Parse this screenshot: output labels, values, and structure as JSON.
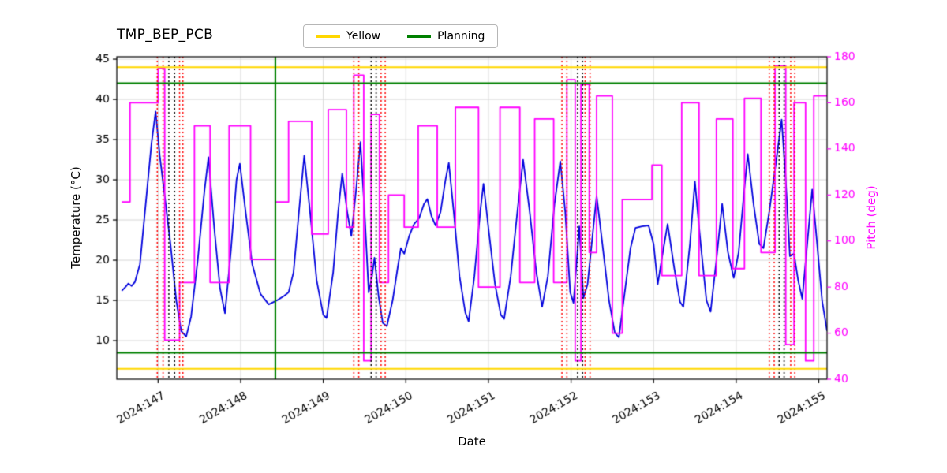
{
  "chart_data": {
    "type": "line",
    "title": "TMP_BEP_PCB",
    "xlabel": "Date",
    "ylabel_left": "Temperature (°C)",
    "ylabel_right": "Pitch (deg)",
    "grid": true,
    "xlim": [
      146.5,
      155.1
    ],
    "ylim_left": [
      5.2,
      45.3
    ],
    "ylim_right": [
      40,
      180
    ],
    "x_ticks": [
      {
        "value": 147,
        "label": "2024:147"
      },
      {
        "value": 148,
        "label": "2024:148"
      },
      {
        "value": 149,
        "label": "2024:149"
      },
      {
        "value": 150,
        "label": "2024:150"
      },
      {
        "value": 151,
        "label": "2024:151"
      },
      {
        "value": 152,
        "label": "2024:152"
      },
      {
        "value": 153,
        "label": "2024:153"
      },
      {
        "value": 154,
        "label": "2024:154"
      },
      {
        "value": 155,
        "label": "2024:155"
      }
    ],
    "y_ticks_left": [
      10,
      15,
      20,
      25,
      30,
      35,
      40,
      45
    ],
    "y_ticks_right": [
      40,
      60,
      80,
      100,
      120,
      140,
      160,
      180
    ],
    "legend": {
      "position": "top-center",
      "entries": [
        {
          "label": "Yellow",
          "color": "#ffd700"
        },
        {
          "label": "Planning",
          "color": "#008000"
        }
      ]
    },
    "limit_lines": {
      "yellow": {
        "color": "#ffd700",
        "values": [
          44.0,
          6.5
        ]
      },
      "green": {
        "color": "#008000",
        "values": [
          42.0,
          8.5
        ]
      }
    },
    "event_lines": {
      "green_solid": {
        "color": "#008000",
        "x": [
          148.42
        ]
      },
      "red_dotted": {
        "color": "#ff0000",
        "x": [
          146.99,
          147.06,
          147.26,
          147.3,
          149.37,
          149.43,
          149.7,
          149.75,
          151.89,
          151.95,
          152.17,
          152.23,
          154.4,
          154.46,
          154.66,
          154.71
        ]
      },
      "black_dotted": {
        "color": "#000000",
        "x": [
          147.13,
          147.2,
          149.58,
          149.64,
          152.08,
          152.14,
          154.52,
          154.58
        ]
      }
    },
    "series": [
      {
        "name": "temperature",
        "axis": "left",
        "style": "line",
        "color": "#0000dd",
        "points": [
          [
            146.56,
            16.2
          ],
          [
            146.6,
            16.6
          ],
          [
            146.64,
            17.1
          ],
          [
            146.68,
            16.8
          ],
          [
            146.72,
            17.3
          ],
          [
            146.78,
            19.5
          ],
          [
            146.85,
            27.0
          ],
          [
            146.92,
            34.5
          ],
          [
            146.97,
            38.5
          ],
          [
            147.02,
            33.0
          ],
          [
            147.08,
            28.0
          ],
          [
            147.15,
            22.0
          ],
          [
            147.22,
            15.0
          ],
          [
            147.28,
            11.2
          ],
          [
            147.34,
            10.5
          ],
          [
            147.4,
            13.0
          ],
          [
            147.48,
            20.0
          ],
          [
            147.56,
            28.5
          ],
          [
            147.61,
            32.8
          ],
          [
            147.68,
            24.0
          ],
          [
            147.75,
            16.5
          ],
          [
            147.81,
            13.4
          ],
          [
            147.88,
            21.0
          ],
          [
            147.95,
            30.0
          ],
          [
            147.99,
            32.0
          ],
          [
            148.06,
            26.0
          ],
          [
            148.14,
            19.5
          ],
          [
            148.24,
            15.8
          ],
          [
            148.34,
            14.5
          ],
          [
            148.44,
            15.0
          ],
          [
            148.53,
            15.6
          ],
          [
            148.58,
            16.0
          ],
          [
            148.64,
            18.5
          ],
          [
            148.71,
            26.5
          ],
          [
            148.77,
            33.0
          ],
          [
            148.84,
            26.0
          ],
          [
            148.92,
            17.5
          ],
          [
            149.0,
            13.2
          ],
          [
            149.04,
            12.8
          ],
          [
            149.12,
            18.5
          ],
          [
            149.18,
            26.0
          ],
          [
            149.23,
            30.8
          ],
          [
            149.29,
            26.0
          ],
          [
            149.34,
            23.0
          ],
          [
            149.4,
            29.0
          ],
          [
            149.45,
            34.7
          ],
          [
            149.5,
            26.0
          ],
          [
            149.55,
            16.0
          ],
          [
            149.59,
            18.0
          ],
          [
            149.62,
            20.3
          ],
          [
            149.67,
            15.5
          ],
          [
            149.72,
            12.2
          ],
          [
            149.77,
            11.8
          ],
          [
            149.84,
            15.0
          ],
          [
            149.9,
            19.0
          ],
          [
            149.94,
            21.5
          ],
          [
            149.98,
            20.8
          ],
          [
            150.04,
            23.0
          ],
          [
            150.1,
            24.5
          ],
          [
            150.16,
            25.2
          ],
          [
            150.22,
            27.0
          ],
          [
            150.26,
            27.6
          ],
          [
            150.31,
            25.5
          ],
          [
            150.36,
            24.3
          ],
          [
            150.42,
            26.0
          ],
          [
            150.48,
            30.0
          ],
          [
            150.52,
            32.1
          ],
          [
            150.58,
            26.0
          ],
          [
            150.65,
            18.0
          ],
          [
            150.72,
            13.5
          ],
          [
            150.76,
            12.4
          ],
          [
            150.83,
            18.0
          ],
          [
            150.9,
            26.0
          ],
          [
            150.94,
            29.5
          ],
          [
            151.0,
            24.0
          ],
          [
            151.08,
            17.0
          ],
          [
            151.15,
            13.2
          ],
          [
            151.19,
            12.7
          ],
          [
            151.27,
            18.0
          ],
          [
            151.35,
            26.0
          ],
          [
            151.42,
            32.5
          ],
          [
            151.5,
            26.0
          ],
          [
            151.58,
            18.5
          ],
          [
            151.65,
            14.2
          ],
          [
            151.72,
            18.0
          ],
          [
            151.8,
            27.0
          ],
          [
            151.87,
            32.3
          ],
          [
            151.93,
            26.0
          ],
          [
            151.99,
            16.0
          ],
          [
            152.03,
            14.7
          ],
          [
            152.07,
            20.0
          ],
          [
            152.1,
            24.2
          ],
          [
            152.15,
            15.3
          ],
          [
            152.2,
            17.0
          ],
          [
            152.26,
            23.0
          ],
          [
            152.31,
            28.0
          ],
          [
            152.38,
            22.0
          ],
          [
            152.46,
            15.0
          ],
          [
            152.53,
            11.0
          ],
          [
            152.58,
            10.4
          ],
          [
            152.65,
            16.0
          ],
          [
            152.72,
            21.5
          ],
          [
            152.78,
            24.0
          ],
          [
            152.86,
            24.2
          ],
          [
            152.94,
            24.3
          ],
          [
            153.0,
            22.0
          ],
          [
            153.05,
            17.0
          ],
          [
            153.12,
            21.5
          ],
          [
            153.17,
            24.5
          ],
          [
            153.25,
            19.0
          ],
          [
            153.32,
            14.8
          ],
          [
            153.36,
            14.2
          ],
          [
            153.44,
            22.0
          ],
          [
            153.5,
            29.8
          ],
          [
            153.57,
            22.0
          ],
          [
            153.64,
            15.0
          ],
          [
            153.69,
            13.6
          ],
          [
            153.76,
            20.0
          ],
          [
            153.83,
            27.0
          ],
          [
            153.9,
            21.0
          ],
          [
            153.97,
            17.8
          ],
          [
            154.03,
            21.0
          ],
          [
            154.1,
            29.0
          ],
          [
            154.14,
            33.2
          ],
          [
            154.21,
            27.0
          ],
          [
            154.28,
            22.0
          ],
          [
            154.33,
            21.5
          ],
          [
            154.4,
            26.0
          ],
          [
            154.48,
            32.0
          ],
          [
            154.55,
            37.5
          ],
          [
            154.6,
            30.0
          ],
          [
            154.65,
            20.5
          ],
          [
            154.7,
            20.8
          ],
          [
            154.75,
            17.5
          ],
          [
            154.8,
            15.2
          ],
          [
            154.86,
            22.0
          ],
          [
            154.92,
            28.8
          ],
          [
            154.98,
            22.0
          ],
          [
            155.04,
            15.0
          ],
          [
            155.1,
            11.2
          ]
        ]
      },
      {
        "name": "pitch",
        "axis": "right",
        "style": "step-post",
        "color": "#ff00ff",
        "points": [
          [
            146.56,
            117
          ],
          [
            146.66,
            160
          ],
          [
            147.0,
            175
          ],
          [
            147.08,
            57
          ],
          [
            147.26,
            82
          ],
          [
            147.44,
            150
          ],
          [
            147.63,
            82
          ],
          [
            147.86,
            150
          ],
          [
            148.12,
            92
          ],
          [
            148.42,
            117
          ],
          [
            148.58,
            152
          ],
          [
            148.86,
            103
          ],
          [
            149.06,
            157
          ],
          [
            149.28,
            106
          ],
          [
            149.37,
            172
          ],
          [
            149.49,
            48
          ],
          [
            149.58,
            155
          ],
          [
            149.68,
            82
          ],
          [
            149.79,
            120
          ],
          [
            149.98,
            106
          ],
          [
            150.15,
            150
          ],
          [
            150.38,
            106
          ],
          [
            150.6,
            158
          ],
          [
            150.88,
            80
          ],
          [
            151.14,
            158
          ],
          [
            151.38,
            82
          ],
          [
            151.56,
            153
          ],
          [
            151.79,
            82
          ],
          [
            151.95,
            170
          ],
          [
            152.05,
            48
          ],
          [
            152.12,
            168
          ],
          [
            152.22,
            95
          ],
          [
            152.31,
            163
          ],
          [
            152.5,
            60
          ],
          [
            152.62,
            118
          ],
          [
            152.98,
            133
          ],
          [
            153.1,
            85
          ],
          [
            153.34,
            160
          ],
          [
            153.55,
            85
          ],
          [
            153.76,
            153
          ],
          [
            153.96,
            88
          ],
          [
            154.1,
            162
          ],
          [
            154.3,
            95
          ],
          [
            154.47,
            176
          ],
          [
            154.6,
            55
          ],
          [
            154.7,
            160
          ],
          [
            154.84,
            48
          ],
          [
            154.94,
            163
          ],
          [
            155.1,
            163
          ]
        ]
      }
    ],
    "colors": {
      "grid": "#d8d8d8",
      "axis": "#000000",
      "tick_label_left": "#000000",
      "tick_label_bottom": "#000000",
      "tick_label_right": "#ff00ff",
      "background": "#ffffff"
    }
  }
}
